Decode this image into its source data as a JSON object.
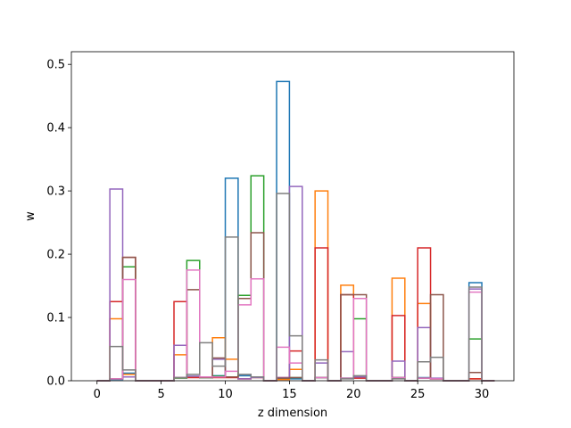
{
  "chart_data": {
    "type": "bar",
    "histtype": "step",
    "xlabel": "z dimension",
    "ylabel": "w",
    "xlim": [
      -2,
      32.5
    ],
    "ylim": [
      0,
      0.52
    ],
    "xticks": [
      0,
      5,
      10,
      15,
      20,
      25,
      30
    ],
    "yticks": [
      0.0,
      0.1,
      0.2,
      0.3,
      0.4,
      0.5
    ],
    "bin_edges": [
      0,
      1,
      2,
      3,
      4,
      5,
      6,
      7,
      8,
      9,
      10,
      11,
      12,
      13,
      14,
      15,
      16,
      17,
      18,
      19,
      20,
      21,
      22,
      23,
      24,
      25,
      26,
      27,
      28,
      29,
      30,
      31
    ],
    "series": [
      {
        "color": "#1f77b4",
        "values": [
          0,
          0.002,
          0.012,
          0,
          0,
          0,
          0.005,
          0.007,
          0.005,
          0.008,
          0.32,
          0.008,
          0.006,
          0,
          0.473,
          0.003,
          0,
          0.005,
          0,
          0.004,
          0.006,
          0,
          0,
          0.005,
          0,
          0.005,
          0.003,
          0,
          0,
          0.155,
          0
        ]
      },
      {
        "color": "#ff7f0e",
        "values": [
          0,
          0.098,
          0.01,
          0,
          0,
          0,
          0.041,
          0.006,
          0.006,
          0.068,
          0.034,
          0.003,
          0.005,
          0,
          0.002,
          0.018,
          0,
          0.3,
          0,
          0.151,
          0.005,
          0,
          0,
          0.162,
          0,
          0.122,
          0.003,
          0,
          0,
          0.003,
          0
        ]
      },
      {
        "color": "#2ca02c",
        "values": [
          0,
          0.003,
          0.18,
          0,
          0,
          0,
          0.004,
          0.19,
          0.005,
          0.007,
          0.006,
          0.135,
          0.324,
          0,
          0.004,
          0.005,
          0,
          0.005,
          0,
          0.004,
          0.098,
          0,
          0,
          0.005,
          0,
          0.004,
          0.003,
          0,
          0,
          0.066,
          0
        ]
      },
      {
        "color": "#d62728",
        "values": [
          0,
          0.125,
          0.195,
          0,
          0,
          0,
          0.125,
          0.005,
          0.006,
          0.005,
          0.005,
          0.003,
          0.006,
          0,
          0.005,
          0.047,
          0,
          0.21,
          0,
          0.136,
          0.004,
          0,
          0,
          0.103,
          0,
          0.21,
          0.003,
          0,
          0,
          0.003,
          0
        ]
      },
      {
        "color": "#9467bd",
        "values": [
          0,
          0.303,
          0.006,
          0,
          0,
          0,
          0.056,
          0.007,
          0.006,
          0.034,
          0.006,
          0.003,
          0.005,
          0,
          0.005,
          0.307,
          0,
          0.028,
          0,
          0.046,
          0.006,
          0,
          0,
          0.031,
          0,
          0.084,
          0.004,
          0,
          0,
          0.145,
          0
        ]
      },
      {
        "color": "#8c564b",
        "values": [
          0,
          0.003,
          0.195,
          0,
          0,
          0,
          0.005,
          0.144,
          0.005,
          0.036,
          0.006,
          0.13,
          0.234,
          0,
          0.004,
          0.005,
          0,
          0.005,
          0,
          0.136,
          0.136,
          0,
          0,
          0.005,
          0,
          0.004,
          0.136,
          0,
          0,
          0.013,
          0
        ]
      },
      {
        "color": "#e377c2",
        "values": [
          0,
          0.003,
          0.16,
          0,
          0,
          0,
          0.005,
          0.175,
          0.006,
          0.006,
          0.015,
          0.12,
          0.161,
          0,
          0.053,
          0.028,
          0,
          0.005,
          0,
          0.004,
          0.13,
          0,
          0,
          0.005,
          0,
          0.004,
          0.003,
          0,
          0,
          0.14,
          0
        ]
      },
      {
        "color": "#7f7f7f",
        "values": [
          0,
          0.054,
          0.017,
          0,
          0,
          0,
          0.005,
          0.01,
          0.06,
          0.023,
          0.227,
          0.01,
          0.006,
          0,
          0.296,
          0.071,
          0,
          0.033,
          0,
          0.003,
          0.008,
          0,
          0,
          0.003,
          0,
          0.03,
          0.037,
          0,
          0,
          0.148,
          0
        ]
      }
    ]
  }
}
